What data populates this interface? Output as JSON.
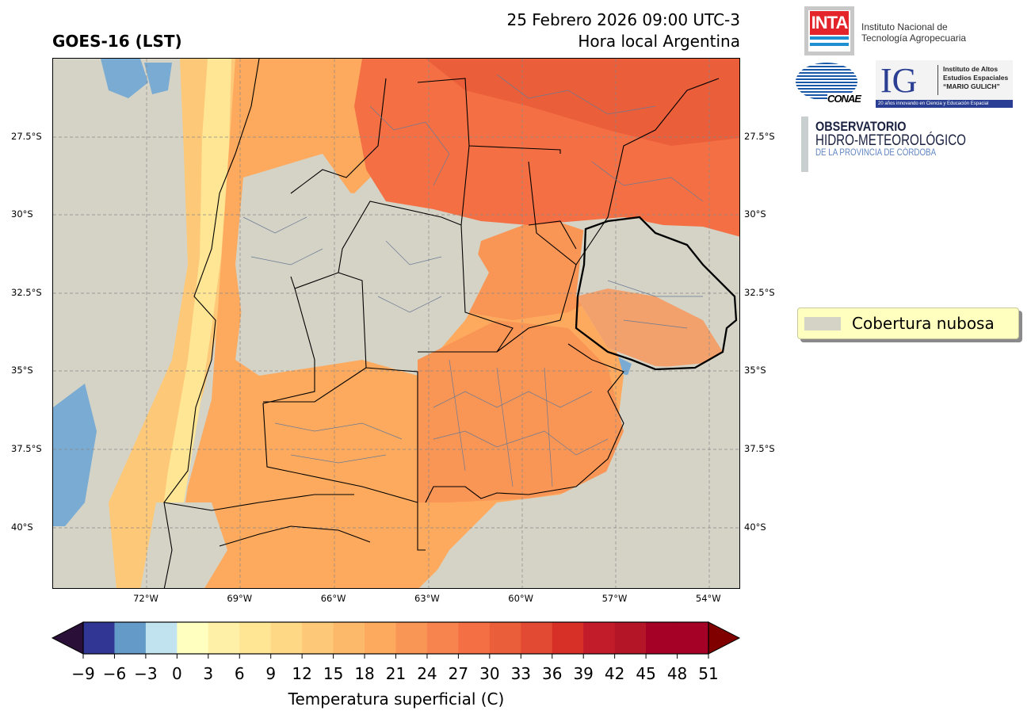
{
  "header": {
    "title": "GOES-16 (LST)",
    "date_line": "25 Febrero 2026 09:00 UTC-3",
    "time_note": "Hora local Argentina"
  },
  "logos": {
    "inta_mark": "INTA",
    "inta_name_1": "Instituto Nacional de",
    "inta_name_2": "Tecnología Agropecuaria",
    "conae": "CONAE",
    "ig_mark": "IG",
    "ig_name_1": "Instituto de Altos",
    "ig_name_2": "Estudios Espaciales",
    "ig_name_3": "“MARIO GULICH”",
    "ig_tagline": "20 años innovando en Ciencia y Educación Espacial",
    "obs_1": "OBSERVATORIO",
    "obs_2": "HIDRO-METEOROLÓGICO",
    "obs_3": "DE LA PROVINCIA DE CÓRDOBA"
  },
  "map": {
    "lat_ticks": [
      "27.5°S",
      "30°S",
      "32.5°S",
      "35°S",
      "37.5°S",
      "40°S"
    ],
    "lon_ticks": [
      "72°W",
      "69°W",
      "66°W",
      "63°W",
      "60°W",
      "57°W",
      "54°W"
    ],
    "cloud_color": "#d5d3c6"
  },
  "legend": {
    "cloud_label": "Cobertura nubosa"
  },
  "colorbar": {
    "label": "Temperatura superficial (C)",
    "ticks": [
      "−9",
      "−6",
      "−3",
      "0",
      "3",
      "6",
      "9",
      "12",
      "15",
      "18",
      "21",
      "24",
      "27",
      "30",
      "33",
      "36",
      "39",
      "42",
      "45",
      "48",
      "51"
    ],
    "colors": [
      "#313695",
      "#649ac7",
      "#c0e3ef",
      "#ffffbf",
      "#fff0a8",
      "#fee695",
      "#fed885",
      "#fdc878",
      "#fdb96a",
      "#fdaa5e",
      "#f99555",
      "#f7844e",
      "#f47044",
      "#ea5e3a",
      "#e34a33",
      "#d73027",
      "#c21b2a",
      "#b41628",
      "#a50026",
      "#a50026"
    ],
    "under_color": "#2a1038",
    "over_color": "#800000"
  }
}
